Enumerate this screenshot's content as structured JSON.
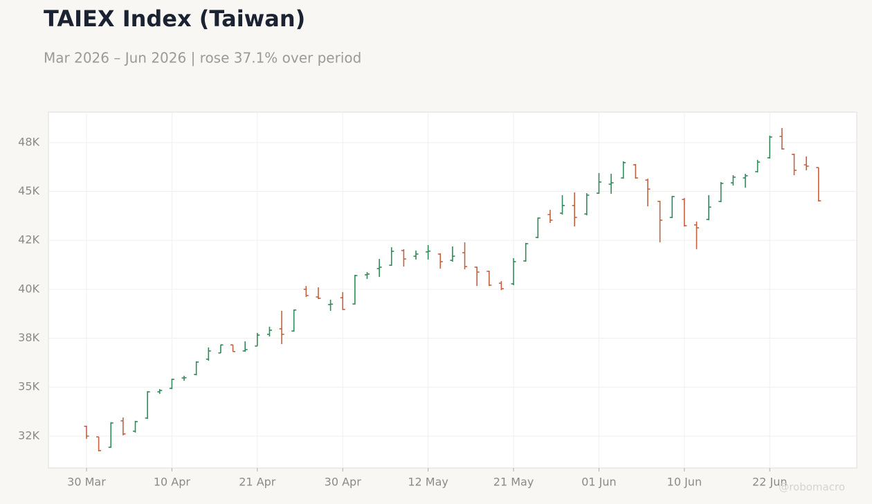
{
  "chart_data": {
    "type": "ohlc",
    "title": "TAIEX Index (Taiwan)",
    "subtitle": "Mar 2026 – Jun 2026 | rose 37.1% over period",
    "watermark": "@robomacro",
    "up_color": "#2e8a58",
    "down_color": "#c4603f",
    "grid": true,
    "ylim": [
      30870,
      49050
    ],
    "yticks": [
      {
        "value": 32500,
        "label": "32K"
      },
      {
        "value": 35000,
        "label": "35K"
      },
      {
        "value": 37500,
        "label": "38K"
      },
      {
        "value": 40000,
        "label": "40K"
      },
      {
        "value": 42500,
        "label": "42K"
      },
      {
        "value": 45000,
        "label": "45K"
      },
      {
        "value": 47500,
        "label": "48K"
      }
    ],
    "categories": [
      "30 Mar",
      null,
      null,
      null,
      null,
      null,
      null,
      "10 Apr",
      null,
      null,
      null,
      null,
      null,
      null,
      "21 Apr",
      null,
      null,
      null,
      null,
      null,
      null,
      "30 Apr",
      null,
      null,
      null,
      null,
      null,
      null,
      "12 May",
      null,
      null,
      null,
      null,
      null,
      null,
      "21 May",
      null,
      null,
      null,
      null,
      null,
      null,
      "01 Jun",
      null,
      null,
      null,
      null,
      null,
      null,
      "10 Jun",
      null,
      null,
      null,
      null,
      null,
      null,
      "22 Jun",
      null,
      null,
      null,
      null
    ],
    "open": [
      33000,
      32460,
      31930,
      33280,
      32750,
      33420,
      34760,
      34940,
      35470,
      35650,
      36430,
      36750,
      37160,
      36850,
      37100,
      37700,
      37980,
      37870,
      40000,
      39610,
      39220,
      39570,
      39250,
      40740,
      41060,
      41230,
      41980,
      41690,
      41910,
      41800,
      41480,
      41870,
      41130,
      40920,
      40310,
      40280,
      41450,
      42650,
      43820,
      43890,
      44280,
      43850,
      44910,
      45370,
      45690,
      46360,
      45580,
      44490,
      43670,
      44590,
      43290,
      43570,
      44490,
      45440,
      45690,
      46010,
      46720,
      47810,
      46890,
      46360,
      46220
    ],
    "high": [
      33030,
      32460,
      33210,
      33450,
      33280,
      34800,
      34900,
      35430,
      35580,
      36320,
      37030,
      37170,
      37170,
      37340,
      37770,
      38090,
      38900,
      38970,
      40170,
      40100,
      39470,
      39860,
      40740,
      40880,
      41550,
      42150,
      42050,
      41980,
      42260,
      41840,
      42190,
      42400,
      41160,
      40950,
      40420,
      41590,
      42370,
      43670,
      44060,
      44810,
      44950,
      44910,
      45940,
      45900,
      46540,
      46400,
      45650,
      44520,
      44770,
      44660,
      43460,
      44810,
      45480,
      45830,
      45900,
      46610,
      47850,
      48240,
      46930,
      46790,
      46220
    ],
    "low": [
      32360,
      31720,
      31900,
      32540,
      32680,
      33380,
      34660,
      34900,
      35330,
      35610,
      36350,
      36740,
      36810,
      36810,
      37100,
      37590,
      37200,
      37840,
      39610,
      39500,
      38900,
      38940,
      39220,
      40530,
      40630,
      41200,
      41160,
      41520,
      41520,
      41060,
      41410,
      41020,
      40170,
      40170,
      39960,
      40210,
      41410,
      42610,
      43390,
      43820,
      43210,
      43780,
      44880,
      44880,
      45650,
      45650,
      44240,
      42400,
      43640,
      43210,
      42050,
      43530,
      44450,
      45300,
      45190,
      45970,
      46680,
      47140,
      45830,
      46080,
      44490
    ],
    "close": [
      32500,
      31760,
      33170,
      32610,
      33240,
      34760,
      34830,
      35400,
      35480,
      36280,
      36850,
      37160,
      36820,
      36920,
      37660,
      37910,
      37700,
      38940,
      39680,
      39540,
      39240,
      38970,
      40700,
      40780,
      41130,
      41940,
      41550,
      41800,
      41950,
      41410,
      41690,
      41160,
      40880,
      40210,
      40030,
      41410,
      42330,
      43640,
      43530,
      44280,
      43670,
      44810,
      45480,
      45440,
      46470,
      45690,
      45120,
      43530,
      44740,
      43250,
      43140,
      44200,
      45410,
      45730,
      45800,
      46500,
      47780,
      47170,
      46080,
      46290,
      44520
    ]
  }
}
